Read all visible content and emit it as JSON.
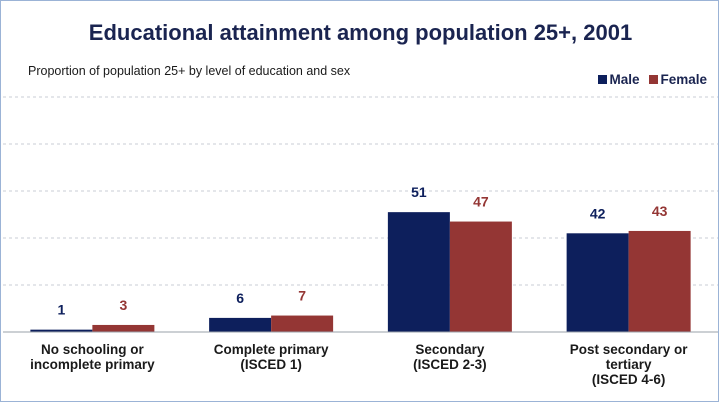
{
  "chart_data": {
    "type": "bar",
    "title": "Educational attainment among population 25+, 2001",
    "subtitle": "Proportion of population 25+ by level of education and sex",
    "categories": [
      [
        "No schooling or",
        "incomplete primary"
      ],
      [
        "Complete primary",
        "(ISCED 1)"
      ],
      [
        "Secondary",
        "(ISCED 2-3)"
      ],
      [
        "Post secondary or",
        "tertiary",
        "(ISCED 4-6)"
      ]
    ],
    "series": [
      {
        "name": "Male",
        "color": "#0d1f5c",
        "values": [
          1,
          6,
          51,
          42
        ]
      },
      {
        "name": "Female",
        "color": "#943634",
        "values": [
          3,
          7,
          47,
          43
        ]
      }
    ],
    "ylim": [
      0,
      100
    ],
    "grid": true,
    "legend_position": "top-right"
  }
}
